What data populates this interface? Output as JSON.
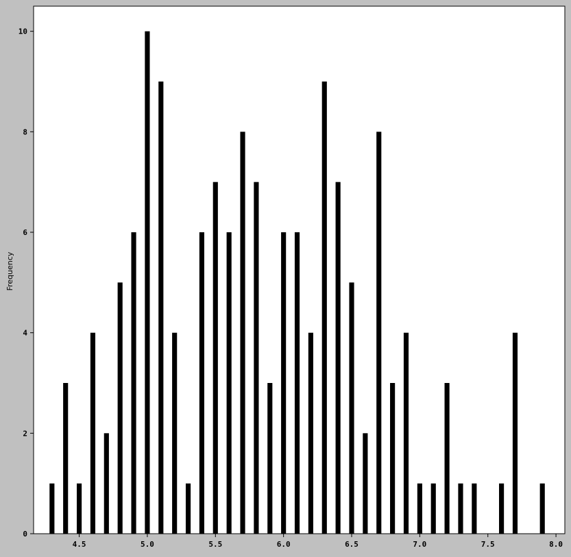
{
  "chart_data": {
    "type": "bar",
    "title": "",
    "xlabel": "",
    "ylabel": "Frequency",
    "xlim": [
      4.165,
      8.065
    ],
    "ylim": [
      0,
      10.5
    ],
    "x_ticks": [
      "4.5",
      "5.0",
      "5.5",
      "6.0",
      "6.5",
      "7.0",
      "7.5",
      "8.0"
    ],
    "y_ticks": [
      "0",
      "2",
      "4",
      "6",
      "8",
      "10"
    ],
    "grid": false,
    "legend": "none",
    "x": [
      4.3,
      4.4,
      4.5,
      4.6,
      4.7,
      4.8,
      4.9,
      5.0,
      5.1,
      5.2,
      5.3,
      5.4,
      5.5,
      5.6,
      5.7,
      5.8,
      5.9,
      6.0,
      6.1,
      6.2,
      6.3,
      6.4,
      6.5,
      6.6,
      6.7,
      6.8,
      6.9,
      7.0,
      7.1,
      7.2,
      7.3,
      7.4,
      7.6,
      7.7,
      7.9
    ],
    "values": [
      1,
      3,
      1,
      4,
      2,
      5,
      6,
      10,
      9,
      4,
      1,
      6,
      7,
      6,
      8,
      7,
      3,
      6,
      6,
      4,
      9,
      7,
      5,
      2,
      8,
      3,
      4,
      1,
      1,
      3,
      1,
      1,
      1,
      4,
      1
    ],
    "bar_width": 0.036
  },
  "colors": {
    "background": "#c0c0c0",
    "plot_area": "#ffffff",
    "bar": "#000000",
    "axis": "#000000"
  }
}
